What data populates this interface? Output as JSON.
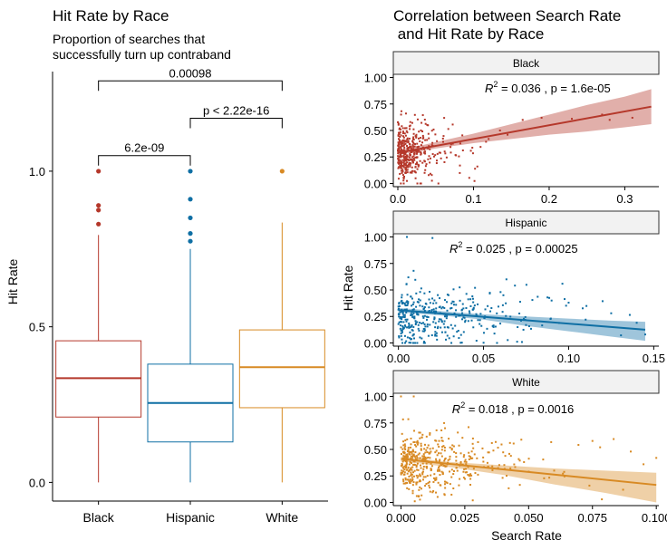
{
  "colors": {
    "Black": "#B5382B",
    "Hispanic": "#0F6FA4",
    "White": "#D88A24",
    "facet_strip_fill": "#F2F2F2",
    "axis": "#000000"
  },
  "chart_data": [
    {
      "type": "box",
      "title": "Hit Rate by Race",
      "subtitle": "Proportion of searches that successfully turn up contraband",
      "subtitle_lines": [
        "Proportion of searches that",
        "successfully turn up contraband"
      ],
      "xlabel": "",
      "ylabel": "Hit Rate",
      "ylim": [
        -0.06,
        1.32
      ],
      "yticks": [
        "0.0",
        "0.5",
        "1.0"
      ],
      "grid": false,
      "legend": "none",
      "categories": [
        "Black",
        "Hispanic",
        "White"
      ],
      "boxes": [
        {
          "name": "Black",
          "q1": 0.21,
          "median": 0.335,
          "q3": 0.455,
          "whisker_low": 0.0,
          "whisker_high": 0.795,
          "outliers": [
            0.83,
            0.875,
            0.89,
            1.0
          ]
        },
        {
          "name": "Hispanic",
          "q1": 0.13,
          "median": 0.255,
          "q3": 0.38,
          "whisker_low": 0.0,
          "whisker_high": 0.75,
          "outliers": [
            0.775,
            0.8,
            0.85,
            0.91,
            1.0
          ]
        },
        {
          "name": "White",
          "q1": 0.24,
          "median": 0.37,
          "q3": 0.49,
          "whisker_low": 0.0,
          "whisker_high": 0.835,
          "outliers": [
            1.0
          ]
        }
      ],
      "comparisons": [
        {
          "groups": [
            "Black",
            "Hispanic"
          ],
          "label": "6.2e-09",
          "y": 1.05
        },
        {
          "groups": [
            "Hispanic",
            "White"
          ],
          "label": "p < 2.22e-16",
          "y": 1.17
        },
        {
          "groups": [
            "Black",
            "White"
          ],
          "label": "0.00098",
          "y": 1.29
        }
      ]
    },
    {
      "type": "scatter",
      "title": "Correlation between Search Rate and Hit Rate by Race",
      "title_lines": [
        "Correlation between Search Rate",
        " and Hit Rate by Race"
      ],
      "xlabel": "Search Rate",
      "ylabel": "Hit Rate",
      "grid": false,
      "legend": "none",
      "facets": [
        {
          "name": "Black",
          "xlim": [
            -0.006,
            0.345
          ],
          "ylim": [
            -0.03,
            1.03
          ],
          "xticks": [
            "0.0",
            "0.1",
            "0.2",
            "0.3"
          ],
          "yticks": [
            "0.00",
            "0.25",
            "0.50",
            "0.75",
            "1.00"
          ],
          "annotation": "= 0.036 , p = 1.6e-05",
          "annotation_r2": {
            "x": 0.115,
            "y": 0.86
          },
          "trend": {
            "x": [
              0.0,
              0.335
            ],
            "y": [
              0.29,
              0.725
            ]
          },
          "band": {
            "x": [
              0.0,
              0.05,
              0.1,
              0.15,
              0.2,
              0.25,
              0.3,
              0.335
            ],
            "lower": [
              0.27,
              0.33,
              0.38,
              0.42,
              0.46,
              0.49,
              0.53,
              0.56
            ],
            "upper": [
              0.31,
              0.39,
              0.47,
              0.56,
              0.65,
              0.74,
              0.82,
              0.89
            ]
          },
          "points_note": "dense cluster near origin",
          "points": {
            "seed": 11,
            "n": 420,
            "x_scale": 0.022,
            "x_max": 0.12,
            "y_mean": 0.3,
            "y_sd": 0.14,
            "extra": [
              [
                0.165,
                0.6
              ],
              [
                0.19,
                0.62
              ],
              [
                0.23,
                0.61
              ],
              [
                0.27,
                0.65
              ],
              [
                0.28,
                0.6
              ],
              [
                0.31,
                0.62
              ],
              [
                0.135,
                0.5
              ],
              [
                0.12,
                0.42
              ],
              [
                0.145,
                0.46
              ]
            ]
          }
        },
        {
          "name": "Hispanic",
          "xlim": [
            -0.003,
            0.153
          ],
          "ylim": [
            -0.03,
            1.03
          ],
          "xticks": [
            "0.00",
            "0.05",
            "0.10",
            "0.15"
          ],
          "yticks": [
            "0.00",
            "0.25",
            "0.50",
            "0.75",
            "1.00"
          ],
          "annotation": "= 0.025 , p = 0.00025",
          "annotation_r2": {
            "x": 0.03,
            "y": 0.85
          },
          "trend": {
            "x": [
              0.0,
              0.145
            ],
            "y": [
              0.31,
              0.125
            ]
          },
          "band": {
            "x": [
              0.0,
              0.025,
              0.05,
              0.075,
              0.1,
              0.125,
              0.145
            ],
            "lower": [
              0.29,
              0.26,
              0.22,
              0.16,
              0.11,
              0.06,
              0.02
            ],
            "upper": [
              0.33,
              0.3,
              0.27,
              0.25,
              0.23,
              0.21,
              0.2
            ]
          },
          "points": {
            "seed": 23,
            "n": 380,
            "x_scale": 0.03,
            "x_max": 0.15,
            "y_mean": 0.25,
            "y_sd": 0.14,
            "extra": [
              [
                0.145,
                0.08
              ],
              [
                0.14,
                0.19
              ],
              [
                0.11,
                0.22
              ],
              [
                0.125,
                0.28
              ],
              [
                0.1,
                0.38
              ],
              [
                0.09,
                0.4
              ],
              [
                0.005,
                1.0
              ],
              [
                0.02,
                0.99
              ],
              [
                0.045,
                0.52
              ],
              [
                0.06,
                0.48
              ]
            ]
          }
        },
        {
          "name": "White",
          "xlim": [
            -0.003,
            0.101
          ],
          "ylim": [
            -0.03,
            1.03
          ],
          "xticks": [
            "0.000",
            "0.025",
            "0.050",
            "0.075",
            "0.100"
          ],
          "yticks": [
            "0.00",
            "0.25",
            "0.50",
            "0.75",
            "1.00"
          ],
          "annotation": "= 0.018 , p = 0.0016",
          "annotation_r2": {
            "x": 0.02,
            "y": 0.84
          },
          "trend": {
            "x": [
              0.0,
              0.1
            ],
            "y": [
              0.41,
              0.165
            ]
          },
          "band": {
            "x": [
              0.0,
              0.02,
              0.04,
              0.06,
              0.08,
              0.1
            ],
            "lower": [
              0.39,
              0.33,
              0.26,
              0.17,
              0.09,
              0.0
            ],
            "upper": [
              0.43,
              0.38,
              0.35,
              0.32,
              0.3,
              0.28
            ]
          },
          "points": {
            "seed": 37,
            "n": 460,
            "x_scale": 0.014,
            "x_max": 0.1,
            "y_mean": 0.36,
            "y_sd": 0.14,
            "extra": [
              [
                0.075,
                0.58
              ],
              [
                0.078,
                0.52
              ],
              [
                0.09,
                0.48
              ],
              [
                0.095,
                0.36
              ],
              [
                0.1,
                0.42
              ],
              [
                0.087,
                0.12
              ],
              [
                0.0,
                1.0
              ],
              [
                0.005,
                1.0
              ],
              [
                0.06,
                0.3
              ]
            ]
          }
        }
      ]
    }
  ]
}
